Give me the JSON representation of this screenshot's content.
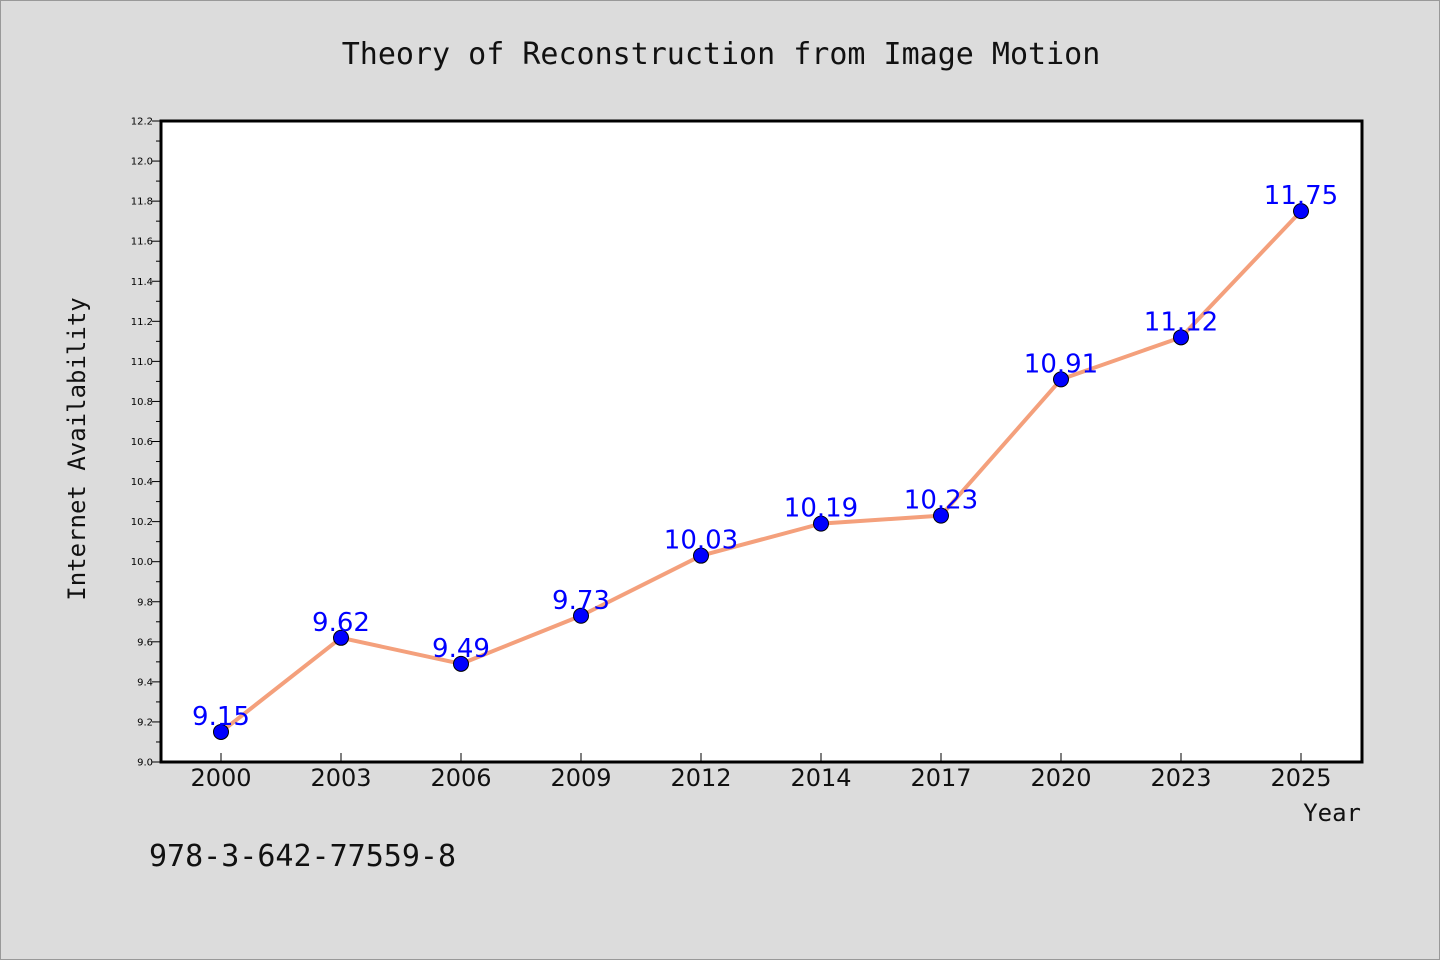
{
  "chart_data": {
    "type": "line",
    "title": "Theory of Reconstruction from Image Motion",
    "xlabel": "Year",
    "ylabel": "Internet Availability",
    "categories": [
      "2000",
      "2003",
      "2006",
      "2009",
      "2012",
      "2014",
      "2017",
      "2020",
      "2023",
      "2025"
    ],
    "series": [
      {
        "values": [
          9.15,
          9.62,
          9.49,
          9.73,
          10.03,
          10.19,
          10.23,
          10.91,
          11.12,
          11.75
        ],
        "data_labels": [
          "9.15",
          "9.62",
          "9.49",
          "9.73",
          "10.03",
          "10.19",
          "10.23",
          "10.91",
          "11.12",
          "11.75"
        ]
      }
    ],
    "ylim": [
      9.0,
      12.2
    ],
    "yticks": [
      "9.0",
      "9.2",
      "9.4",
      "9.6",
      "9.8",
      "10.0",
      "10.2",
      "10.4",
      "10.6",
      "10.8",
      "11.0",
      "11.2",
      "11.4",
      "11.6",
      "11.8",
      "12.0",
      "12.2"
    ],
    "grid": false,
    "line_color": "#f4a07c",
    "marker_color": "#0000ff",
    "label_color": "#0000ff",
    "annotation": "978-3-642-77559-8"
  }
}
